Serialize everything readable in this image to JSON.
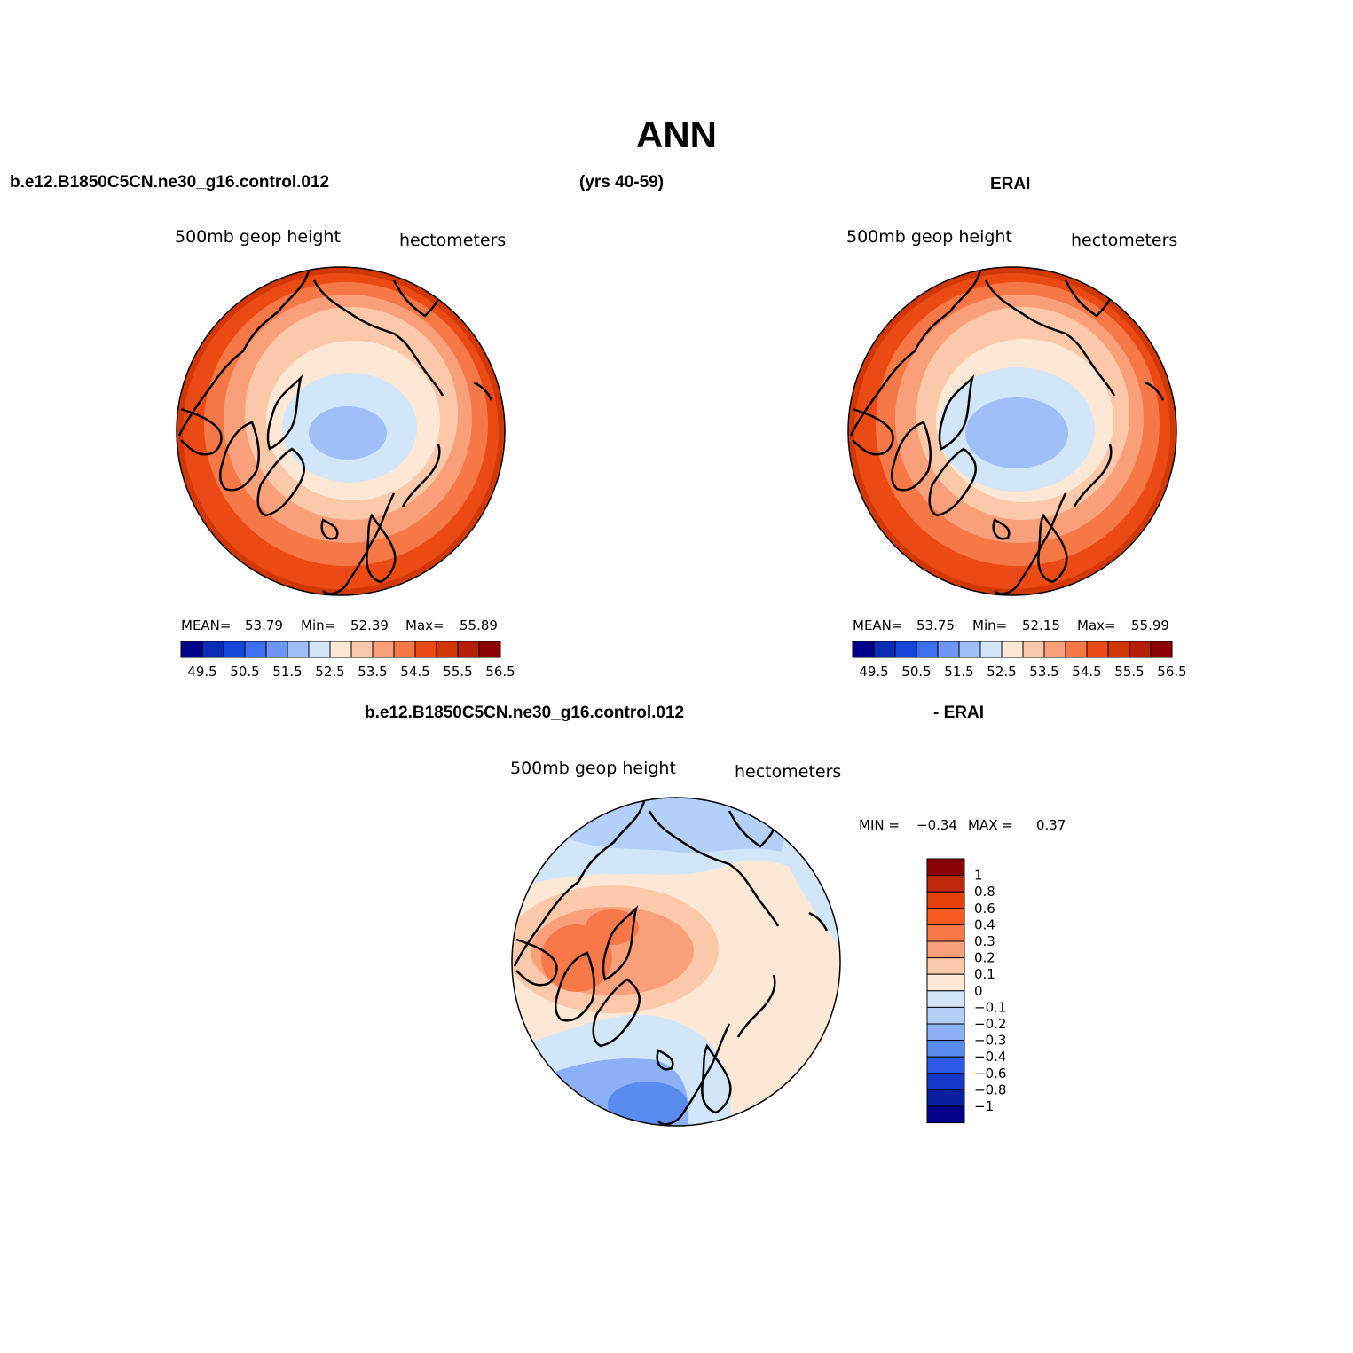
{
  "page": {
    "title": "ANN",
    "case_name": "b.e12.B1850C5CN.ne30_g16.control.012",
    "years": "(yrs 40-59)",
    "obs_name": "ERAI",
    "diff_case_name": "b.e12.B1850C5CN.ne30_g16.control.012",
    "diff_obs_name": "- ERAI"
  },
  "panels": {
    "model": {
      "variable": "500mb geop height",
      "units": "hectometers",
      "mean_label": "MEAN=",
      "mean": "53.79",
      "min_label": "Min=",
      "min": "52.39",
      "max_label": "Max=",
      "max": "55.89"
    },
    "obs": {
      "variable": "500mb geop height",
      "units": "hectometers",
      "mean_label": "MEAN=",
      "mean": "53.75",
      "min_label": "Min=",
      "min": "52.15",
      "max_label": "Max=",
      "max": "55.99"
    },
    "diff": {
      "variable": "500mb geop height",
      "units": "hectometers",
      "min_label": "MIN =",
      "min": "−0.34",
      "max_label": "MAX =",
      "max": "0.37"
    }
  },
  "abs_colorbar": {
    "colors": [
      "#00008b",
      "#0a2db4",
      "#1446dc",
      "#3c6ef0",
      "#6e96f5",
      "#a0bef8",
      "#d2e6fa",
      "#fde8d6",
      "#fcc8aa",
      "#f9a07a",
      "#f57846",
      "#eb4a14",
      "#d23706",
      "#b41e0a",
      "#8b0000"
    ],
    "labels": [
      "49.5",
      "50.5",
      "51.5",
      "52.5",
      "53.5",
      "54.5",
      "55.5",
      "56.5"
    ]
  },
  "diff_colorbar": {
    "colors": [
      "#8b0000",
      "#c0280a",
      "#e4400c",
      "#f55a1e",
      "#f8784a",
      "#f9a07a",
      "#fcc8aa",
      "#fde8d6",
      "#d2e6fa",
      "#b4cff8",
      "#8cb0f5",
      "#5a8cf0",
      "#2d5ae6",
      "#1438c8",
      "#0a1ea0",
      "#00008b"
    ],
    "labels": [
      "1",
      "0.8",
      "0.6",
      "0.4",
      "0.3",
      "0.2",
      "0.1",
      "0",
      "−0.1",
      "−0.2",
      "−0.3",
      "−0.4",
      "−0.6",
      "−0.8",
      "−1"
    ]
  }
}
